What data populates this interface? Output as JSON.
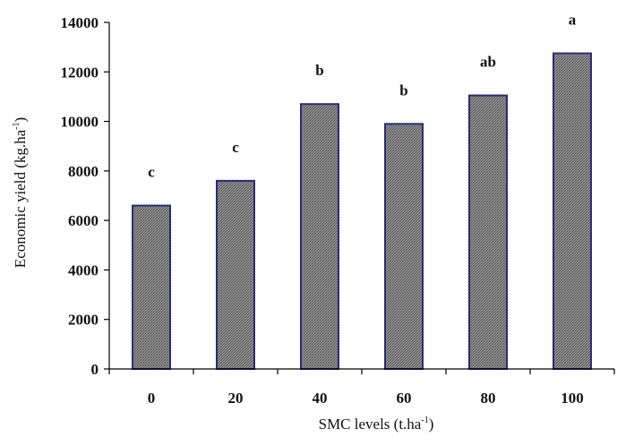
{
  "chart_data": {
    "type": "bar",
    "categories": [
      "0",
      "20",
      "40",
      "60",
      "80",
      "100"
    ],
    "values": [
      6600,
      7600,
      10700,
      9900,
      11050,
      12750
    ],
    "significance_letters": [
      "c",
      "c",
      "b",
      "b",
      "ab",
      "a"
    ],
    "xlabel_main": "SMC levels (t.ha",
    "xlabel_sup": "-1",
    "xlabel_end": ")",
    "ylabel_main": "Economic yield (kg.ha",
    "ylabel_sup": "-1",
    "ylabel_end": ")",
    "ylim": [
      0,
      14000
    ],
    "yticks": [
      "0",
      "2000",
      "4000",
      "6000",
      "8000",
      "10000",
      "12000",
      "14000"
    ],
    "grid": false,
    "colors": {
      "bar_fill": "#7a7a7a",
      "bar_edge": "#2b2b7a"
    }
  }
}
